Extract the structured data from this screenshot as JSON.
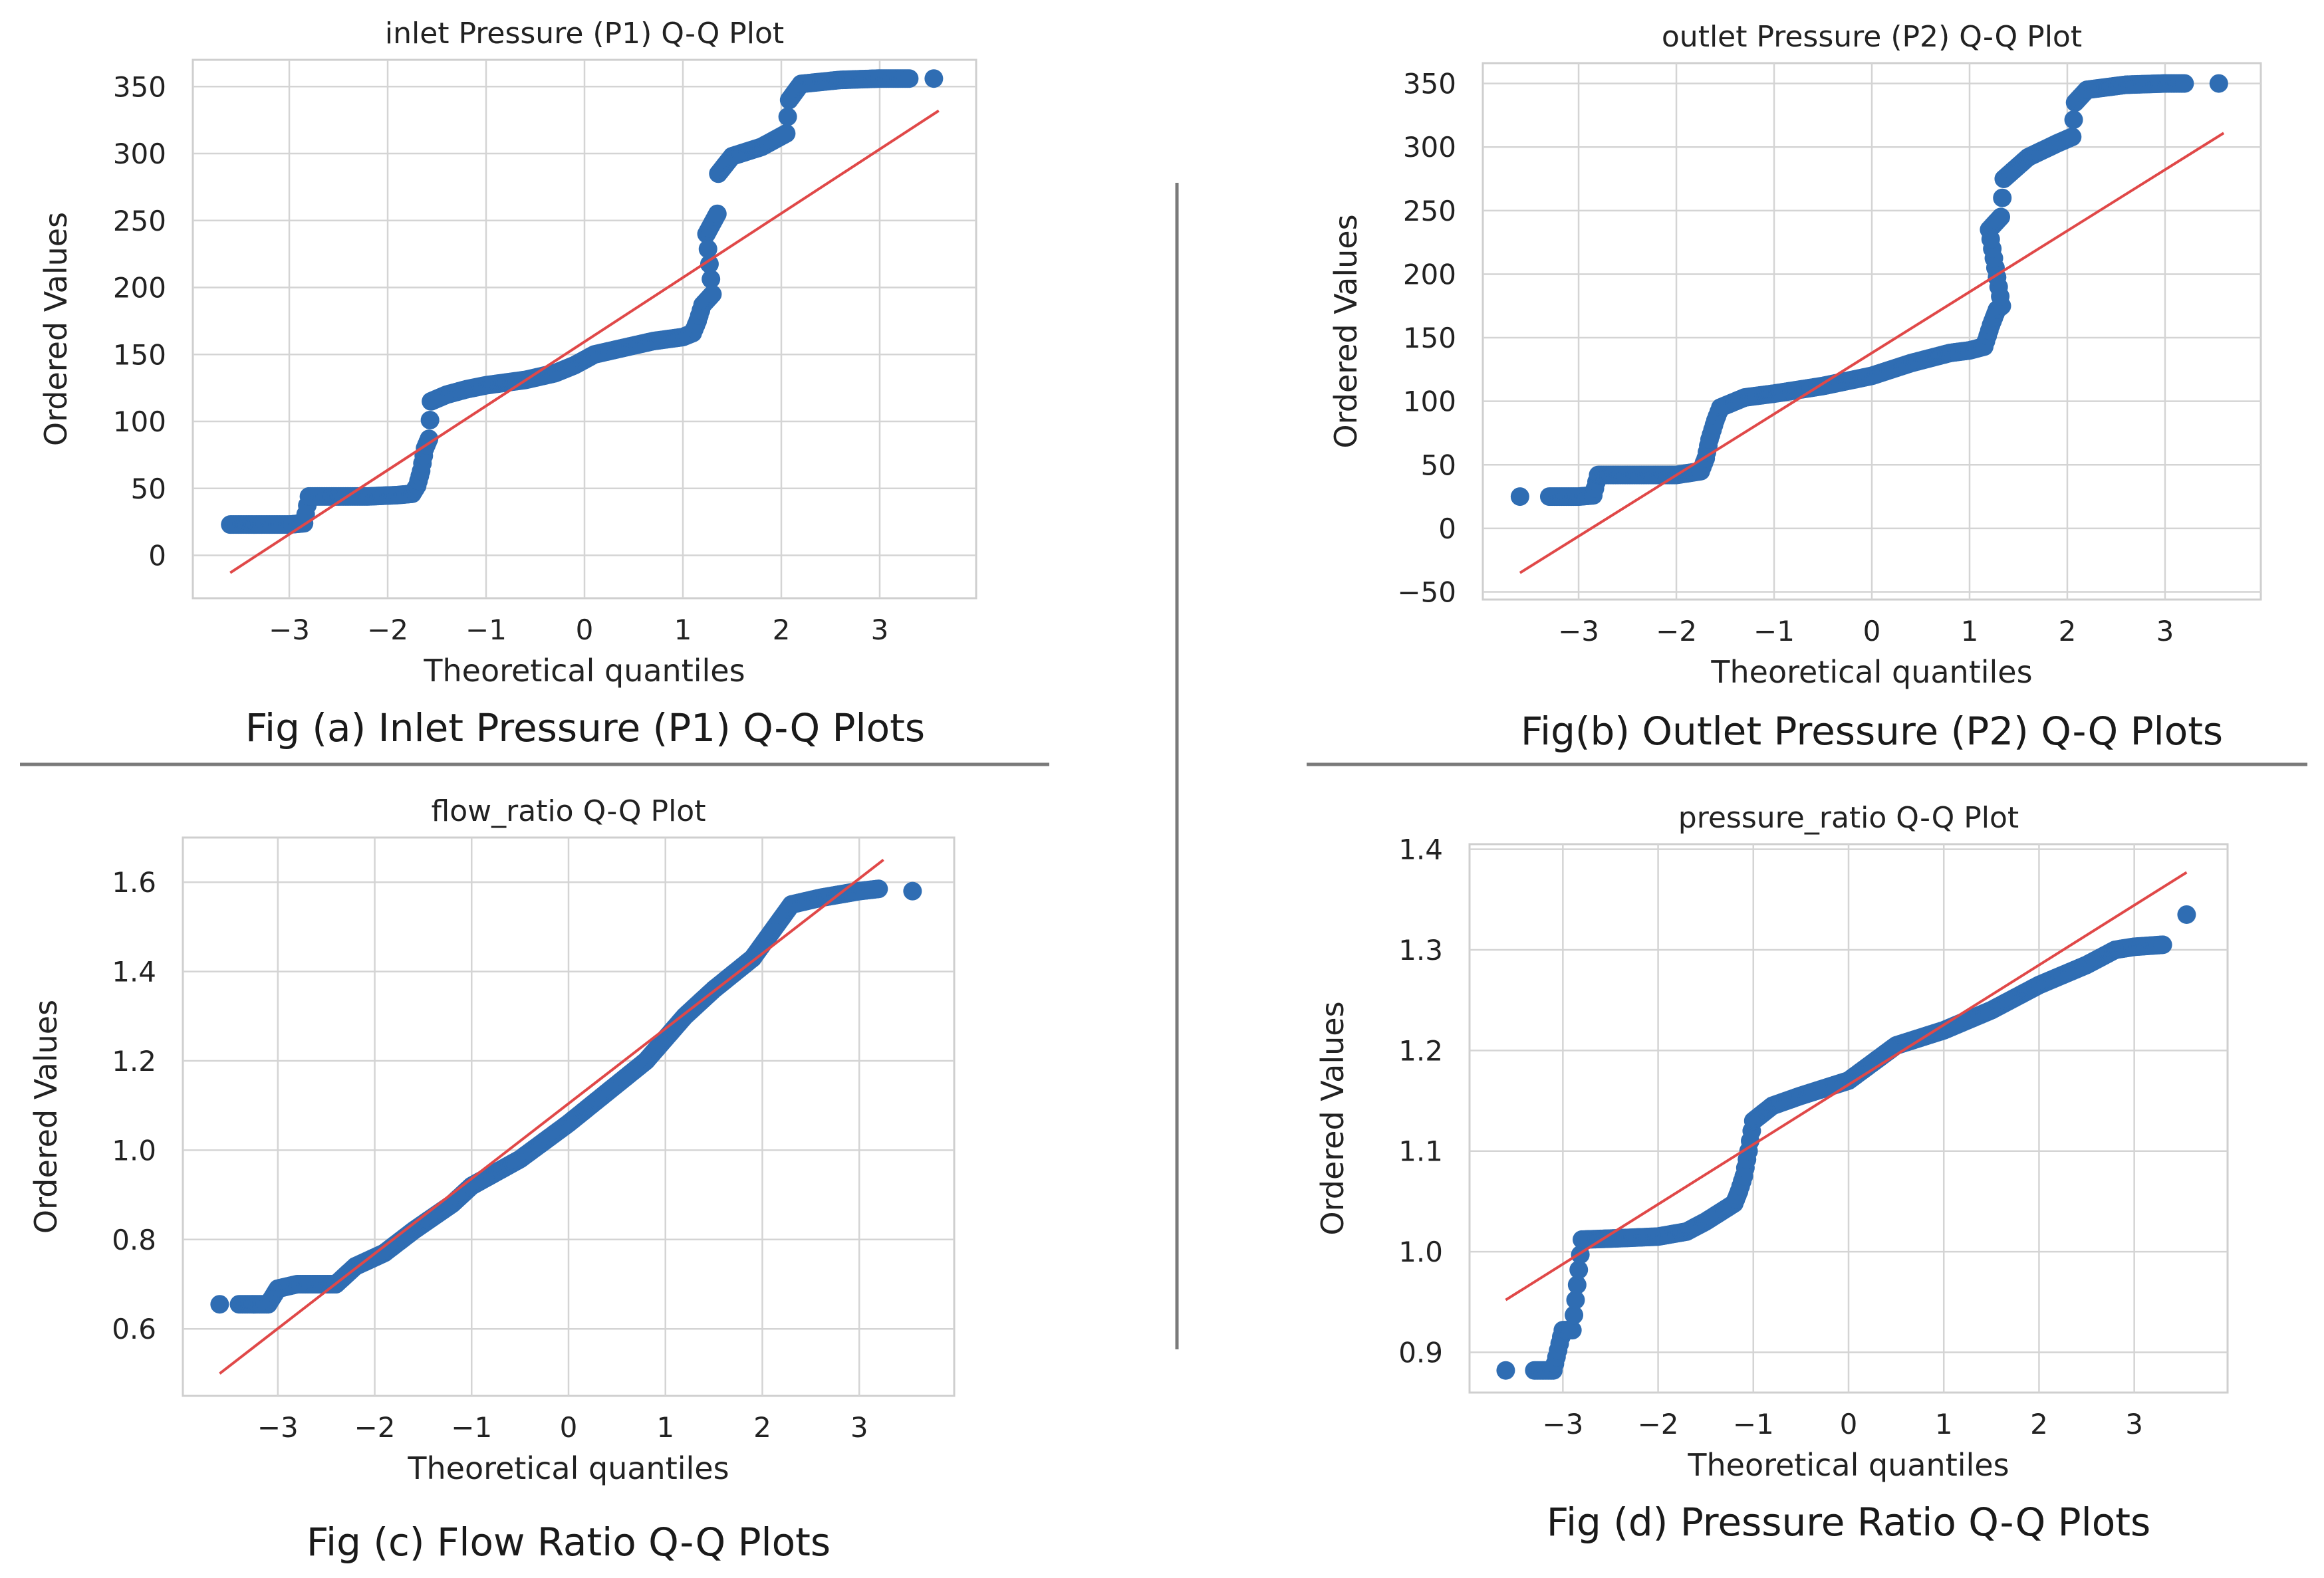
{
  "chart_data": [
    {
      "id": "a",
      "type": "scatter",
      "title": "inlet Pressure (P1) Q-Q Plot",
      "xlabel": "Theoretical quantiles",
      "ylabel": "Ordered Values",
      "caption": "Fig (a) Inlet Pressure (P1) Q-Q Plots",
      "xlim": [
        -3.98,
        3.98
      ],
      "ylim": [
        -32,
        370
      ],
      "xticks": [
        -3,
        -2,
        -1,
        0,
        1,
        2,
        3
      ],
      "xtick_labels": [
        "−3",
        "−2",
        "−1",
        "0",
        "1",
        "2",
        "3"
      ],
      "yticks": [
        0,
        50,
        100,
        150,
        200,
        250,
        300,
        350
      ],
      "ytick_labels": [
        "0",
        "50",
        "100",
        "150",
        "200",
        "250",
        "300",
        "350"
      ],
      "grid": true,
      "fit_line": {
        "x": [
          -3.6,
          3.6
        ],
        "y": [
          -13,
          332
        ]
      },
      "points_curve": [
        [
          -3.6,
          23
        ],
        [
          -3.4,
          23
        ],
        [
          -3.2,
          23
        ],
        [
          -3.0,
          23
        ],
        [
          -2.85,
          24
        ],
        [
          -2.8,
          44
        ],
        [
          -2.5,
          44
        ],
        [
          -2.2,
          44
        ],
        [
          -1.9,
          45
        ],
        [
          -1.75,
          46
        ],
        [
          -1.7,
          52
        ],
        [
          -1.66,
          63
        ],
        [
          -1.62,
          80
        ],
        [
          -1.58,
          87
        ],
        [
          -1.56,
          115
        ],
        [
          -1.4,
          120
        ],
        [
          -1.2,
          124
        ],
        [
          -1.0,
          127
        ],
        [
          -0.6,
          131
        ],
        [
          -0.3,
          136
        ],
        [
          -0.1,
          142
        ],
        [
          0.1,
          150
        ],
        [
          0.4,
          155
        ],
        [
          0.7,
          160
        ],
        [
          1.0,
          163
        ],
        [
          1.1,
          166
        ],
        [
          1.15,
          175
        ],
        [
          1.2,
          187
        ],
        [
          1.3,
          195
        ],
        [
          1.24,
          240
        ],
        [
          1.35,
          255
        ],
        [
          1.36,
          285
        ],
        [
          1.5,
          298
        ],
        [
          1.8,
          305
        ],
        [
          2.05,
          315
        ],
        [
          2.08,
          340
        ],
        [
          2.2,
          352
        ],
        [
          2.6,
          355
        ],
        [
          3.0,
          356
        ],
        [
          3.3,
          356
        ]
      ],
      "outliers": [
        [
          3.55,
          356
        ]
      ]
    },
    {
      "id": "b",
      "type": "scatter",
      "title": "outlet Pressure (P2) Q-Q Plot",
      "xlabel": "Theoretical quantiles",
      "ylabel": "Ordered Values",
      "caption": "Fig(b) Outlet Pressure (P2) Q-Q Plots",
      "xlim": [
        -3.98,
        3.98
      ],
      "ylim": [
        -56,
        366
      ],
      "xticks": [
        -3,
        -2,
        -1,
        0,
        1,
        2,
        3
      ],
      "xtick_labels": [
        "−3",
        "−2",
        "−1",
        "0",
        "1",
        "2",
        "3"
      ],
      "yticks": [
        -50,
        0,
        50,
        100,
        150,
        200,
        250,
        300,
        350
      ],
      "ytick_labels": [
        "−50",
        "0",
        "50",
        "100",
        "150",
        "200",
        "250",
        "300",
        "350"
      ],
      "grid": true,
      "fit_line": {
        "x": [
          -3.6,
          3.6
        ],
        "y": [
          -35,
          311
        ]
      },
      "points_curve": [
        [
          -3.3,
          25
        ],
        [
          -3.0,
          25
        ],
        [
          -2.85,
          26
        ],
        [
          -2.8,
          42
        ],
        [
          -2.5,
          42
        ],
        [
          -2.0,
          42
        ],
        [
          -1.75,
          45
        ],
        [
          -1.7,
          55
        ],
        [
          -1.66,
          70
        ],
        [
          -1.6,
          85
        ],
        [
          -1.55,
          95
        ],
        [
          -1.3,
          103
        ],
        [
          -1.0,
          106
        ],
        [
          -0.5,
          112
        ],
        [
          0.0,
          120
        ],
        [
          0.4,
          130
        ],
        [
          0.8,
          138
        ],
        [
          1.0,
          140
        ],
        [
          1.15,
          143
        ],
        [
          1.22,
          160
        ],
        [
          1.28,
          172
        ],
        [
          1.33,
          175
        ],
        [
          1.2,
          235
        ],
        [
          1.32,
          245
        ],
        [
          1.35,
          275
        ],
        [
          1.6,
          292
        ],
        [
          1.9,
          303
        ],
        [
          2.05,
          308
        ],
        [
          2.08,
          335
        ],
        [
          2.2,
          345
        ],
        [
          2.6,
          349
        ],
        [
          3.0,
          350
        ],
        [
          3.2,
          350
        ]
      ],
      "outliers": [
        [
          -3.6,
          25
        ],
        [
          3.55,
          350
        ]
      ]
    },
    {
      "id": "c",
      "type": "scatter",
      "title": "flow_ratio Q-Q Plot",
      "xlabel": "Theoretical quantiles",
      "ylabel": "Ordered Values",
      "caption": "Fig (c) Flow Ratio Q-Q Plots",
      "xlim": [
        -3.98,
        3.98
      ],
      "ylim": [
        0.45,
        1.7
      ],
      "xticks": [
        -3,
        -2,
        -1,
        0,
        1,
        2,
        3
      ],
      "xtick_labels": [
        "−3",
        "−2",
        "−1",
        "0",
        "1",
        "2",
        "3"
      ],
      "yticks": [
        0.6,
        0.8,
        1.0,
        1.2,
        1.4,
        1.6
      ],
      "ytick_labels": [
        "0.6",
        "0.8",
        "1.0",
        "1.2",
        "1.4",
        "1.6"
      ],
      "grid": true,
      "fit_line": {
        "x": [
          -3.6,
          3.25
        ],
        "y": [
          0.5,
          1.65
        ]
      },
      "points_curve": [
        [
          -3.4,
          0.655
        ],
        [
          -3.1,
          0.655
        ],
        [
          -3.0,
          0.69
        ],
        [
          -2.8,
          0.7
        ],
        [
          -2.4,
          0.7
        ],
        [
          -2.2,
          0.74
        ],
        [
          -1.9,
          0.77
        ],
        [
          -1.6,
          0.82
        ],
        [
          -1.2,
          0.88
        ],
        [
          -1.0,
          0.92
        ],
        [
          -0.5,
          0.98
        ],
        [
          0.0,
          1.06
        ],
        [
          0.4,
          1.13
        ],
        [
          0.8,
          1.2
        ],
        [
          1.2,
          1.3
        ],
        [
          1.5,
          1.36
        ],
        [
          1.9,
          1.43
        ],
        [
          2.1,
          1.49
        ],
        [
          2.3,
          1.55
        ],
        [
          2.6,
          1.565
        ],
        [
          3.0,
          1.58
        ],
        [
          3.2,
          1.585
        ]
      ],
      "outliers": [
        [
          -3.6,
          0.655
        ],
        [
          3.55,
          1.58
        ]
      ]
    },
    {
      "id": "d",
      "type": "scatter",
      "title": "pressure_ratio Q-Q Plot",
      "xlabel": "Theoretical quantiles",
      "ylabel": "Ordered Values",
      "caption": "Fig (d) Pressure Ratio Q-Q Plots",
      "xlim": [
        -3.98,
        3.98
      ],
      "ylim": [
        0.86,
        1.405
      ],
      "xticks": [
        -3,
        -2,
        -1,
        0,
        1,
        2,
        3
      ],
      "xtick_labels": [
        "−3",
        "−2",
        "−1",
        "0",
        "1",
        "2",
        "3"
      ],
      "yticks": [
        0.9,
        1.0,
        1.1,
        1.2,
        1.3,
        1.4
      ],
      "ytick_labels": [
        "0.9",
        "1.0",
        "1.1",
        "1.2",
        "1.3",
        "1.4"
      ],
      "grid": true,
      "fit_line": {
        "x": [
          -3.6,
          3.55
        ],
        "y": [
          0.952,
          1.377
        ]
      },
      "points_curve": [
        [
          -3.3,
          0.882
        ],
        [
          -3.1,
          0.882
        ],
        [
          -3.0,
          0.922
        ],
        [
          -2.9,
          0.922
        ],
        [
          -2.8,
          1.012
        ],
        [
          -2.5,
          1.013
        ],
        [
          -2.0,
          1.015
        ],
        [
          -1.7,
          1.02
        ],
        [
          -1.5,
          1.03
        ],
        [
          -1.2,
          1.048
        ],
        [
          -1.15,
          1.06
        ],
        [
          -1.1,
          1.075
        ],
        [
          -1.05,
          1.1
        ],
        [
          -1.0,
          1.13
        ],
        [
          -0.8,
          1.145
        ],
        [
          -0.5,
          1.155
        ],
        [
          0.0,
          1.17
        ],
        [
          0.5,
          1.205
        ],
        [
          1.0,
          1.22
        ],
        [
          1.5,
          1.24
        ],
        [
          2.0,
          1.265
        ],
        [
          2.5,
          1.285
        ],
        [
          2.8,
          1.3
        ],
        [
          3.0,
          1.303
        ],
        [
          3.3,
          1.305
        ]
      ],
      "outliers": [
        [
          -3.6,
          0.882
        ],
        [
          3.55,
          1.335
        ]
      ]
    }
  ]
}
